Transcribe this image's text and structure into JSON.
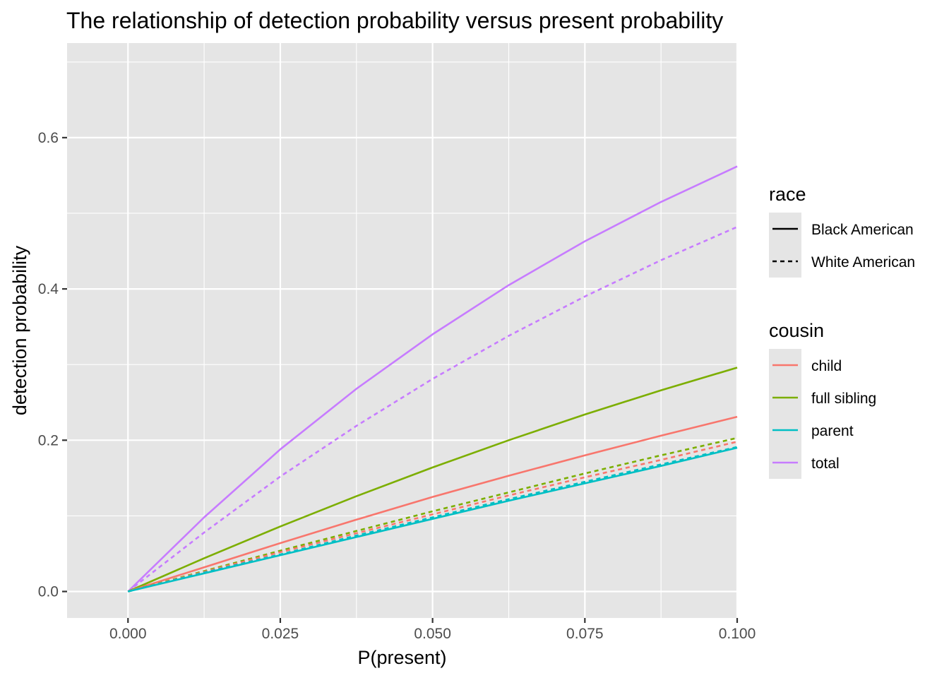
{
  "chart_data": {
    "type": "line",
    "title": "The relationship of detection probability versus present probability",
    "xlabel": "P(present)",
    "ylabel": "detection probability",
    "xlim": [
      -0.01,
      0.1
    ],
    "ylim": [
      -0.035,
      0.725
    ],
    "xticks": [
      0.0,
      0.025,
      0.05,
      0.075,
      0.1
    ],
    "xtick_labels": [
      "0.000",
      "0.025",
      "0.050",
      "0.075",
      "0.100"
    ],
    "yticks": [
      0.0,
      0.2,
      0.4,
      0.6
    ],
    "ytick_labels": [
      "0.0",
      "0.2",
      "0.4",
      "0.6"
    ],
    "grid": true,
    "background": "#e5e5e5",
    "legend_position": "right",
    "legends": [
      {
        "title": "race",
        "kind": "linetype",
        "items": [
          {
            "label": "Black American",
            "linetype": "solid"
          },
          {
            "label": "White American",
            "linetype": "dashed"
          }
        ]
      },
      {
        "title": "cousin",
        "kind": "color",
        "items": [
          {
            "label": "child",
            "color": "#F8766D"
          },
          {
            "label": "full sibling",
            "color": "#7CAE00"
          },
          {
            "label": "parent",
            "color": "#00BFC4"
          },
          {
            "label": "total",
            "color": "#C77CFF"
          }
        ]
      }
    ],
    "x": [
      0.0,
      0.0125,
      0.025,
      0.0375,
      0.05,
      0.0625,
      0.075,
      0.0875,
      0.1
    ],
    "series": [
      {
        "name": "total, Black American",
        "color": "#C77CFF",
        "linetype": "solid",
        "values": [
          0.0,
          0.098,
          0.188,
          0.268,
          0.34,
          0.405,
          0.463,
          0.515,
          0.562
        ]
      },
      {
        "name": "total, White American",
        "color": "#C77CFF",
        "linetype": "dashed",
        "values": [
          0.0,
          0.078,
          0.152,
          0.219,
          0.281,
          0.338,
          0.39,
          0.438,
          0.482
        ]
      },
      {
        "name": "full sibling, Black American",
        "color": "#7CAE00",
        "linetype": "solid",
        "values": [
          0.0,
          0.044,
          0.086,
          0.126,
          0.164,
          0.2,
          0.234,
          0.266,
          0.296
        ]
      },
      {
        "name": "child, Black American",
        "color": "#F8766D",
        "linetype": "solid",
        "values": [
          0.0,
          0.032,
          0.064,
          0.095,
          0.125,
          0.153,
          0.18,
          0.206,
          0.231
        ]
      },
      {
        "name": "full sibling, White American",
        "color": "#7CAE00",
        "linetype": "dashed",
        "values": [
          0.0,
          0.027,
          0.054,
          0.08,
          0.106,
          0.131,
          0.156,
          0.18,
          0.203
        ]
      },
      {
        "name": "child, White American",
        "color": "#F8766D",
        "linetype": "dashed",
        "values": [
          0.0,
          0.026,
          0.052,
          0.077,
          0.102,
          0.127,
          0.151,
          0.174,
          0.198
        ]
      },
      {
        "name": "parent, White American",
        "color": "#00BFC4",
        "linetype": "dashed",
        "values": [
          0.0,
          0.025,
          0.049,
          0.074,
          0.098,
          0.122,
          0.145,
          0.168,
          0.191
        ]
      },
      {
        "name": "parent, Black American",
        "color": "#00BFC4",
        "linetype": "solid",
        "values": [
          0.0,
          0.024,
          0.048,
          0.072,
          0.096,
          0.12,
          0.143,
          0.166,
          0.19
        ]
      }
    ]
  }
}
